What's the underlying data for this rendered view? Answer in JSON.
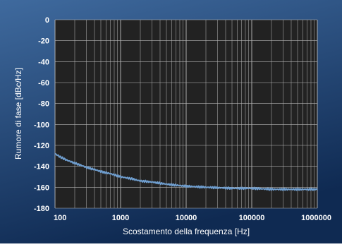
{
  "colors": {
    "panel_top": "#3f6a9e",
    "panel_bottom": "#0f2a52",
    "plot_bg": "#222222",
    "grid": "#b9b9b9",
    "series": "#6f9ecf",
    "text": "#ffffff"
  },
  "chart_data": {
    "type": "line",
    "title": "",
    "xlabel": "Scostamento della frequenza [Hz]",
    "ylabel": "Rumore di fase [dBc/Hz]",
    "x_scale": "log",
    "xlim": [
      100,
      1000000
    ],
    "ylim": [
      -180,
      0
    ],
    "grid": true,
    "x_ticks": [
      100,
      1000,
      10000,
      100000,
      1000000
    ],
    "x_tick_labels": [
      "100",
      "1000",
      "10000",
      "100000",
      "1000000"
    ],
    "y_ticks": [
      0,
      -20,
      -40,
      -60,
      -80,
      -100,
      -120,
      -140,
      -160,
      -180
    ],
    "y_tick_labels": [
      "0",
      "-20",
      "-40",
      "-60",
      "-80",
      "-100",
      "-120",
      "-140",
      "-160",
      "-180"
    ],
    "series": [
      {
        "x": [
          100,
          120,
          150,
          200,
          250,
          300,
          400,
          500,
          700,
          1000,
          1500,
          2000,
          3000,
          5000,
          7000,
          10000,
          20000,
          50000,
          100000,
          200000,
          500000,
          1000000
        ],
        "y": [
          -128,
          -131,
          -134,
          -137,
          -139,
          -141,
          -143,
          -145,
          -147,
          -150,
          -152,
          -154,
          -155,
          -157,
          -158,
          -159,
          -160,
          -161,
          -161,
          -162,
          -162,
          -162
        ]
      }
    ]
  }
}
